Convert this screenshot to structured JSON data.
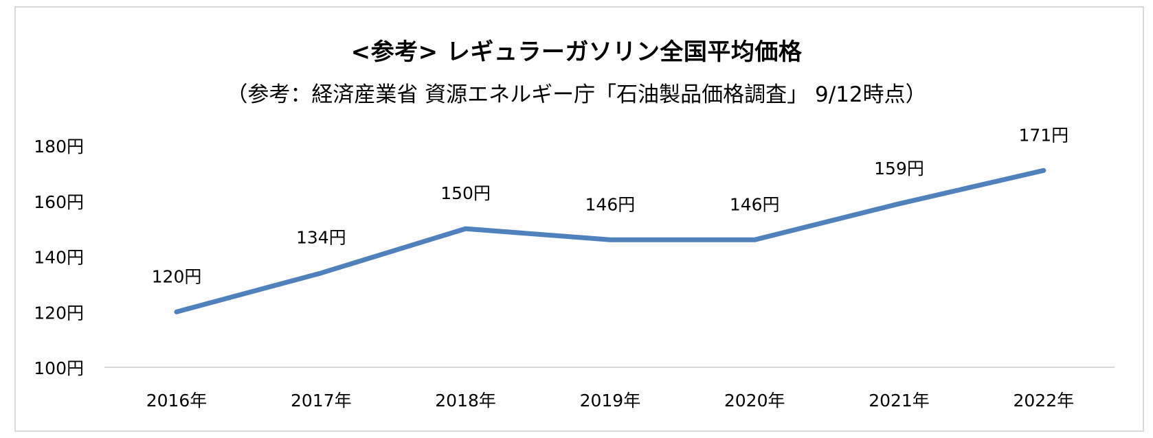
{
  "chart_data": {
    "type": "line",
    "title": "<参考> レギュラーガソリン全国平均価格",
    "subtitle": "（参考：経済産業省 資源エネルギー庁「石油製品価格調査」 9/12時点）",
    "categories": [
      "2016年",
      "2017年",
      "2018年",
      "2019年",
      "2020年",
      "2021年",
      "2022年"
    ],
    "series": [
      {
        "values": [
          120,
          134,
          150,
          146,
          146,
          159,
          171
        ],
        "data_labels": [
          "120円",
          "134円",
          "150円",
          "146円",
          "146円",
          "159円",
          "171円"
        ],
        "color": "#4f81bd"
      }
    ],
    "ylim": [
      100,
      180
    ],
    "yticks": [
      100,
      120,
      140,
      160,
      180
    ],
    "ytick_labels": [
      "100円",
      "120円",
      "140円",
      "160円",
      "180円"
    ],
    "grid": false,
    "legend": "none",
    "xlabel": "",
    "ylabel": ""
  }
}
